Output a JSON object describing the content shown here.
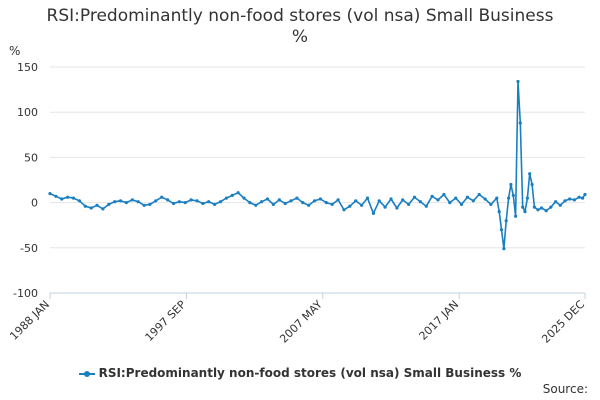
{
  "chart_data": {
    "type": "line",
    "title_line1": "RSI:Predominantly non-food stores (vol nsa) Small Business",
    "title_line2": "%",
    "unit_label": "%",
    "xlabel": "",
    "ylabel": "",
    "ylim": [
      -100,
      150
    ],
    "yticks": [
      150,
      100,
      50,
      0,
      -50,
      -100
    ],
    "xlim": [
      "1988-01",
      "2025-12"
    ],
    "xtick_labels": [
      "1988 JAN",
      "1997 SEP",
      "2007 MAY",
      "2017 JAN",
      "2025 DEC"
    ],
    "xtick_dates": [
      "1988-01",
      "1997-09",
      "2007-05",
      "2017-01",
      "2025-12"
    ],
    "grid": "horizontal",
    "legend_position": "bottom",
    "series": [
      {
        "name": "RSI:Predominantly non-food stores (vol nsa) Small Business %",
        "color": "#1a7fc1",
        "points": [
          [
            "1988-01",
            10
          ],
          [
            "1988-06",
            7
          ],
          [
            "1988-11",
            4
          ],
          [
            "1989-04",
            6
          ],
          [
            "1989-09",
            5
          ],
          [
            "1990-02",
            2
          ],
          [
            "1990-07",
            -4
          ],
          [
            "1990-12",
            -6
          ],
          [
            "1991-05",
            -3
          ],
          [
            "1991-10",
            -7
          ],
          [
            "1992-03",
            -2
          ],
          [
            "1992-08",
            1
          ],
          [
            "1993-01",
            2
          ],
          [
            "1993-06",
            0
          ],
          [
            "1993-11",
            3
          ],
          [
            "1994-04",
            1
          ],
          [
            "1994-09",
            -3
          ],
          [
            "1995-02",
            -2
          ],
          [
            "1995-07",
            2
          ],
          [
            "1995-12",
            6
          ],
          [
            "1996-05",
            3
          ],
          [
            "1996-10",
            -1
          ],
          [
            "1997-03",
            1
          ],
          [
            "1997-08",
            0
          ],
          [
            "1998-01",
            3
          ],
          [
            "1998-06",
            2
          ],
          [
            "1998-11",
            -1
          ],
          [
            "1999-04",
            1
          ],
          [
            "1999-09",
            -2
          ],
          [
            "2000-02",
            1
          ],
          [
            "2000-07",
            5
          ],
          [
            "2000-12",
            8
          ],
          [
            "2001-05",
            11
          ],
          [
            "2001-10",
            5
          ],
          [
            "2002-03",
            0
          ],
          [
            "2002-08",
            -3
          ],
          [
            "2003-01",
            1
          ],
          [
            "2003-06",
            4
          ],
          [
            "2003-11",
            -2
          ],
          [
            "2004-04",
            3
          ],
          [
            "2004-09",
            -1
          ],
          [
            "2005-02",
            2
          ],
          [
            "2005-07",
            5
          ],
          [
            "2005-12",
            0
          ],
          [
            "2006-05",
            -3
          ],
          [
            "2006-10",
            2
          ],
          [
            "2007-03",
            4
          ],
          [
            "2007-08",
            0
          ],
          [
            "2008-01",
            -2
          ],
          [
            "2008-06",
            3
          ],
          [
            "2008-11",
            -8
          ],
          [
            "2009-04",
            -4
          ],
          [
            "2009-09",
            2
          ],
          [
            "2010-02",
            -3
          ],
          [
            "2010-07",
            5
          ],
          [
            "2010-12",
            -12
          ],
          [
            "2011-05",
            2
          ],
          [
            "2011-10",
            -5
          ],
          [
            "2012-03",
            4
          ],
          [
            "2012-08",
            -6
          ],
          [
            "2013-01",
            3
          ],
          [
            "2013-06",
            -2
          ],
          [
            "2013-11",
            6
          ],
          [
            "2014-04",
            1
          ],
          [
            "2014-09",
            -4
          ],
          [
            "2015-02",
            7
          ],
          [
            "2015-07",
            3
          ],
          [
            "2015-12",
            9
          ],
          [
            "2016-05",
            0
          ],
          [
            "2016-10",
            5
          ],
          [
            "2017-03",
            -2
          ],
          [
            "2017-08",
            6
          ],
          [
            "2018-01",
            2
          ],
          [
            "2018-06",
            9
          ],
          [
            "2018-11",
            4
          ],
          [
            "2019-04",
            -2
          ],
          [
            "2019-09",
            5
          ],
          [
            "2019-11",
            -10
          ],
          [
            "2020-01",
            -30
          ],
          [
            "2020-03",
            -51
          ],
          [
            "2020-05",
            -20
          ],
          [
            "2020-07",
            5
          ],
          [
            "2020-09",
            20
          ],
          [
            "2020-11",
            8
          ],
          [
            "2021-01",
            -15
          ],
          [
            "2021-03",
            134
          ],
          [
            "2021-05",
            88
          ],
          [
            "2021-07",
            -5
          ],
          [
            "2021-09",
            -10
          ],
          [
            "2021-11",
            5
          ],
          [
            "2022-01",
            32
          ],
          [
            "2022-03",
            20
          ],
          [
            "2022-05",
            -5
          ],
          [
            "2022-08",
            -8
          ],
          [
            "2022-11",
            -6
          ],
          [
            "2023-03",
            -9
          ],
          [
            "2023-07",
            -5
          ],
          [
            "2023-11",
            1
          ],
          [
            "2024-03",
            -3
          ],
          [
            "2024-07",
            2
          ],
          [
            "2024-11",
            4
          ],
          [
            "2025-03",
            3
          ],
          [
            "2025-07",
            6
          ],
          [
            "2025-10",
            5
          ],
          [
            "2025-12",
            9
          ]
        ]
      }
    ]
  },
  "footer": {
    "source_label": "Source:"
  }
}
